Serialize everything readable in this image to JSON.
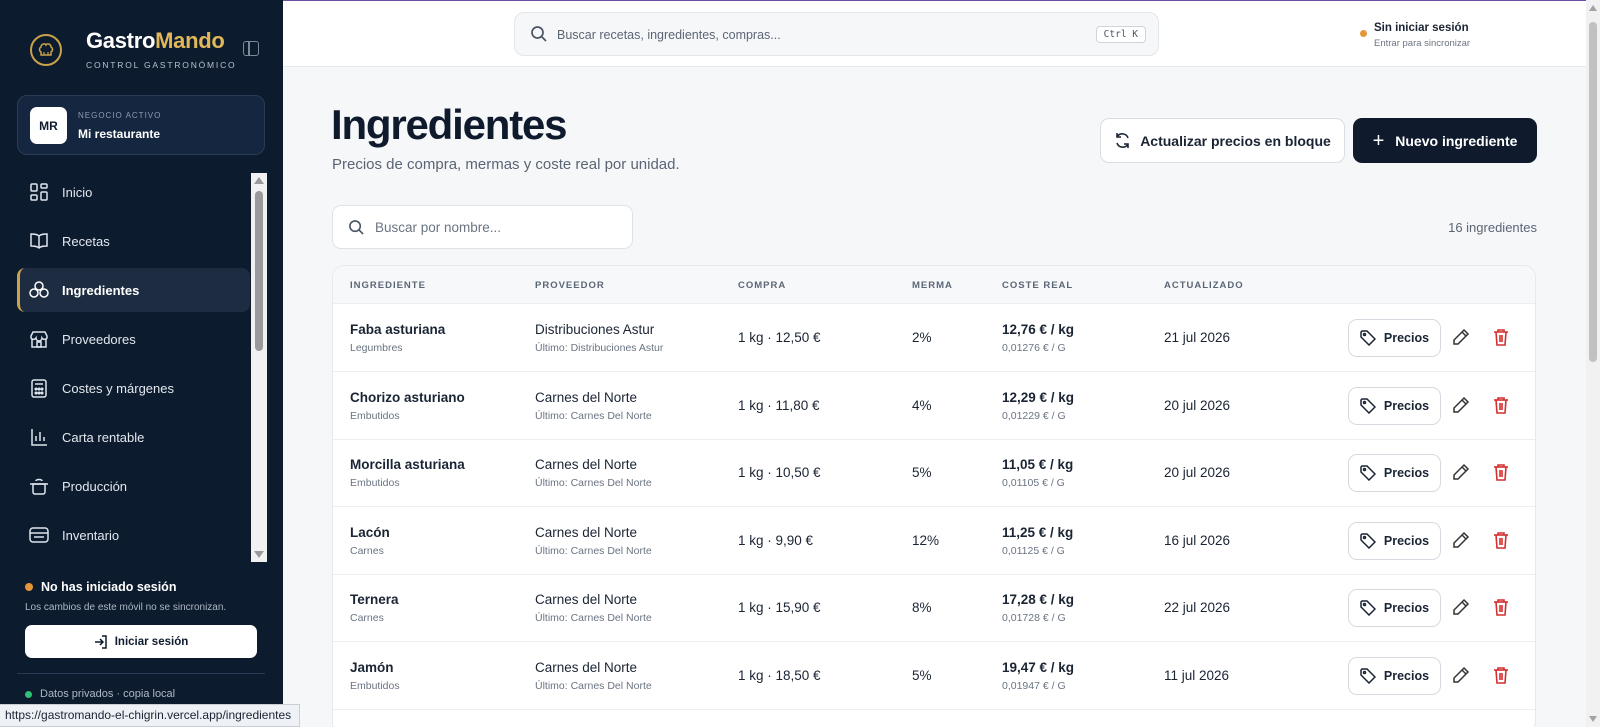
{
  "brand": {
    "name_part1": "Gastro",
    "name_part2": "Mando",
    "subtitle": "CONTROL GASTRONÓMICO",
    "accent_color": "#e0b85a"
  },
  "business": {
    "avatar": "MR",
    "kicker": "NEGOCIO ACTIVO",
    "name": "Mi restaurante"
  },
  "sidebar": {
    "items": [
      {
        "label": "Inicio",
        "icon": "grid-icon"
      },
      {
        "label": "Recetas",
        "icon": "book-icon"
      },
      {
        "label": "Ingredientes",
        "icon": "ingredients-icon",
        "active": true
      },
      {
        "label": "Proveedores",
        "icon": "store-icon"
      },
      {
        "label": "Costes y márgenes",
        "icon": "calculator-icon"
      },
      {
        "label": "Carta rentable",
        "icon": "bar-chart-icon"
      },
      {
        "label": "Producción",
        "icon": "pot-icon"
      },
      {
        "label": "Inventario",
        "icon": "archive-icon"
      }
    ],
    "session_title": "No has iniciado sesión",
    "session_desc": "Los cambios de este móvil no se sincronizan.",
    "login_label": "Iniciar sesión",
    "private_label": "Datos privados · copia local"
  },
  "topbar": {
    "search_placeholder": "Buscar recetas, ingredientes, compras...",
    "shortcut": "Ctrl K",
    "user_status": "Sin iniciar sesión",
    "user_status_sub": "Entrar para sincronizar"
  },
  "page": {
    "title": "Ingredientes",
    "subtitle": "Precios de compra, mermas y coste real por unidad.",
    "bulk_update_label": "Actualizar precios en bloque",
    "new_label": "Nuevo ingrediente",
    "search_placeholder": "Buscar por nombre...",
    "count": "16 ingredientes"
  },
  "table": {
    "headers": [
      "INGREDIENTE",
      "PROVEEDOR",
      "COMPRA",
      "MERMA",
      "COSTE REAL",
      "ACTUALIZADO"
    ],
    "precios_label": "Precios",
    "rows": [
      {
        "name": "Faba asturiana",
        "category": "Legumbres",
        "supplier": "Distribuciones Astur",
        "last": "Último: Distribuciones Astur",
        "purchase": "1 kg · 12,50 €",
        "waste": "2%",
        "cost": "12,76 € / kg",
        "cost_unit": "0,01276 € / G",
        "updated": "21 jul 2026"
      },
      {
        "name": "Chorizo asturiano",
        "category": "Embutidos",
        "supplier": "Carnes del Norte",
        "last": "Último: Carnes Del Norte",
        "purchase": "1 kg · 11,80 €",
        "waste": "4%",
        "cost": "12,29 € / kg",
        "cost_unit": "0,01229 € / G",
        "updated": "20 jul 2026"
      },
      {
        "name": "Morcilla asturiana",
        "category": "Embutidos",
        "supplier": "Carnes del Norte",
        "last": "Último: Carnes Del Norte",
        "purchase": "1 kg · 10,50 €",
        "waste": "5%",
        "cost": "11,05 € / kg",
        "cost_unit": "0,01105 € / G",
        "updated": "20 jul 2026"
      },
      {
        "name": "Lacón",
        "category": "Carnes",
        "supplier": "Carnes del Norte",
        "last": "Último: Carnes Del Norte",
        "purchase": "1 kg · 9,90 €",
        "waste": "12%",
        "cost": "11,25 € / kg",
        "cost_unit": "0,01125 € / G",
        "updated": "16 jul 2026"
      },
      {
        "name": "Ternera",
        "category": "Carnes",
        "supplier": "Carnes del Norte",
        "last": "Último: Carnes Del Norte",
        "purchase": "1 kg · 15,90 €",
        "waste": "8%",
        "cost": "17,28 € / kg",
        "cost_unit": "0,01728 € / G",
        "updated": "22 jul 2026"
      },
      {
        "name": "Jamón",
        "category": "Embutidos",
        "supplier": "Carnes del Norte",
        "last": "Último: Carnes Del Norte",
        "purchase": "1 kg · 18,50 €",
        "waste": "5%",
        "cost": "19,47 € / kg",
        "cost_unit": "0,01947 € / G",
        "updated": "11 jul 2026"
      }
    ]
  },
  "status_url": "https://gastromando-el-chigrin.vercel.app/ingredientes"
}
